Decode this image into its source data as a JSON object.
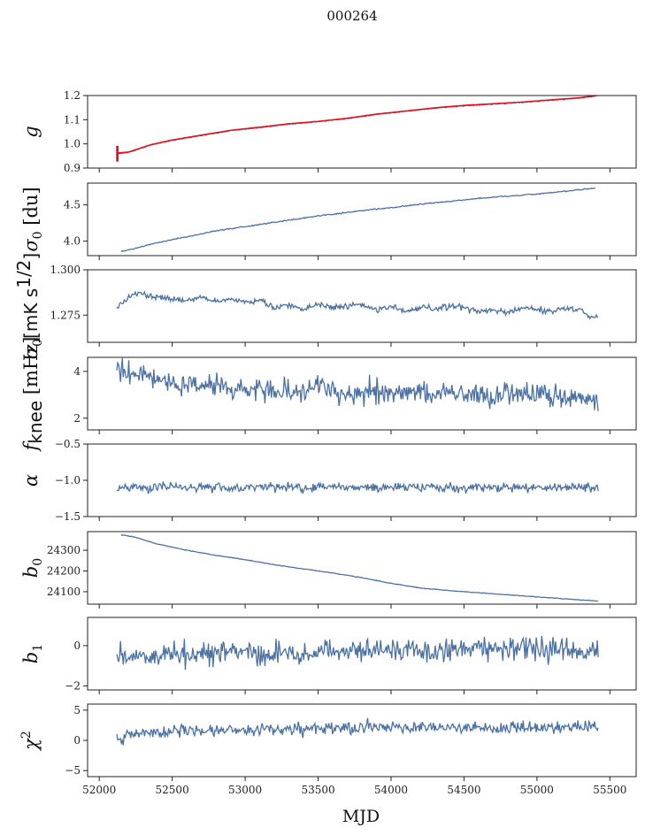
{
  "title": "000264",
  "colors": {
    "series": "#4c72a4",
    "overlay": "#e8101a",
    "axis": "#222222"
  },
  "x_axis": {
    "label": "MJD",
    "range": [
      51920,
      55680
    ],
    "ticks": [
      52000,
      52500,
      53000,
      53500,
      54000,
      54500,
      55000,
      55500
    ],
    "tick_labels": [
      "52000",
      "52500",
      "53000",
      "53500",
      "54000",
      "54500",
      "55000",
      "55500"
    ]
  },
  "chart_data": [
    {
      "type": "line",
      "key": "g",
      "ylabel": "g",
      "ylim": [
        0.9,
        1.2
      ],
      "yticks": [
        0.9,
        1.0,
        1.1,
        1.2
      ],
      "ytick_labels": [
        "0.9",
        "1.0",
        "1.1",
        "1.2"
      ],
      "series": [
        {
          "name": "g",
          "role": "main",
          "x": [
            52120,
            52200,
            52350,
            52500,
            52700,
            52900,
            53100,
            53300,
            53500,
            53700,
            53900,
            54100,
            54300,
            54500,
            54700,
            54900,
            55100,
            55300,
            55420
          ],
          "values": [
            0.96,
            0.965,
            0.995,
            1.015,
            1.035,
            1.055,
            1.068,
            1.082,
            1.092,
            1.105,
            1.122,
            1.135,
            1.148,
            1.158,
            1.165,
            1.172,
            1.181,
            1.19,
            1.2
          ]
        },
        {
          "name": "g fit",
          "role": "overlay",
          "x": [
            52120,
            52200,
            52350,
            52500,
            52700,
            52900,
            53100,
            53300,
            53500,
            53700,
            53900,
            54100,
            54300,
            54500,
            54700,
            54900,
            55100,
            55300,
            55420,
            55500
          ],
          "values": [
            0.962,
            0.966,
            0.996,
            1.016,
            1.036,
            1.056,
            1.069,
            1.083,
            1.093,
            1.106,
            1.123,
            1.136,
            1.149,
            1.159,
            1.166,
            1.173,
            1.182,
            1.191,
            1.201,
            1.205
          ]
        }
      ]
    },
    {
      "type": "line",
      "key": "sigma0_du",
      "ylabel": "σ0 [du]",
      "ylim": [
        3.8,
        4.8
      ],
      "yticks": [
        4.0,
        4.5
      ],
      "ytick_labels": [
        "4.0",
        "4.5"
      ],
      "series": [
        {
          "name": "sigma0",
          "role": "main",
          "x": [
            52150,
            52250,
            52400,
            52600,
            52800,
            53000,
            53200,
            53400,
            53600,
            53800,
            54000,
            54200,
            54400,
            54600,
            54800,
            55000,
            55200,
            55400
          ],
          "values": [
            3.86,
            3.9,
            3.98,
            4.06,
            4.14,
            4.2,
            4.26,
            4.32,
            4.37,
            4.42,
            4.46,
            4.51,
            4.55,
            4.59,
            4.62,
            4.65,
            4.69,
            4.73
          ]
        }
      ]
    },
    {
      "type": "line",
      "key": "sigma0_mK",
      "ylabel": "σ0[mK s^1/2]",
      "ylim": [
        1.26,
        1.3
      ],
      "yticks": [
        1.275,
        1.3
      ],
      "ytick_labels": [
        "1.275",
        "1.300"
      ],
      "series": [
        {
          "name": "sigma0 mK",
          "role": "main",
          "x": [
            52120,
            52160,
            52200,
            52260,
            52320,
            52400,
            52500,
            52600,
            52700,
            52800,
            52900,
            53000,
            53100,
            53200,
            53300,
            53400,
            53500,
            53600,
            53700,
            53800,
            53900,
            54000,
            54100,
            54200,
            54300,
            54400,
            54500,
            54600,
            54700,
            54800,
            54900,
            55000,
            55100,
            55200,
            55300,
            55360,
            55420
          ],
          "values": [
            1.279,
            1.281,
            1.285,
            1.287,
            1.286,
            1.285,
            1.284,
            1.283,
            1.285,
            1.283,
            1.284,
            1.282,
            1.283,
            1.279,
            1.281,
            1.278,
            1.281,
            1.279,
            1.28,
            1.281,
            1.278,
            1.28,
            1.277,
            1.279,
            1.278,
            1.28,
            1.279,
            1.277,
            1.278,
            1.276,
            1.279,
            1.278,
            1.277,
            1.279,
            1.278,
            1.274,
            1.274
          ]
        }
      ]
    },
    {
      "type": "line",
      "key": "fknee",
      "ylabel": "f_knee [mHz]",
      "ylim": [
        1.5,
        4.6
      ],
      "yticks": [
        2,
        4
      ],
      "ytick_labels": [
        "2",
        "4"
      ],
      "series": [
        {
          "name": "fknee",
          "role": "main",
          "x": [
            52120,
            52200,
            52300,
            52400,
            52500,
            52600,
            52700,
            52800,
            52900,
            53000,
            53100,
            53200,
            53300,
            53400,
            53500,
            53600,
            53700,
            53800,
            53900,
            54000,
            54100,
            54200,
            54300,
            54400,
            54500,
            54600,
            54700,
            54800,
            54900,
            55000,
            55100,
            55200,
            55300,
            55420
          ],
          "values": [
            4.2,
            3.9,
            3.8,
            3.7,
            3.5,
            3.4,
            3.4,
            3.5,
            3.3,
            3.2,
            3.3,
            3.1,
            3.2,
            3.1,
            3.3,
            3.2,
            3.0,
            3.1,
            3.2,
            3.0,
            3.1,
            3.1,
            3.0,
            3.2,
            3.0,
            3.1,
            2.9,
            3.1,
            3.0,
            3.2,
            2.9,
            3.0,
            3.0,
            2.7
          ]
        }
      ]
    },
    {
      "type": "line",
      "key": "alpha",
      "ylabel": "α",
      "ylim": [
        -1.5,
        -0.5
      ],
      "yticks": [
        -1.5,
        -1.0,
        -0.5
      ],
      "ytick_labels": [
        "−1.5",
        "−1.0",
        "−0.5"
      ],
      "series": [
        {
          "name": "alpha",
          "role": "main",
          "x": [
            52120,
            52300,
            52500,
            52700,
            52900,
            53100,
            53300,
            53500,
            53700,
            53900,
            54100,
            54300,
            54500,
            54700,
            54900,
            55100,
            55300,
            55420
          ],
          "values": [
            -1.12,
            -1.1,
            -1.09,
            -1.1,
            -1.11,
            -1.09,
            -1.1,
            -1.1,
            -1.09,
            -1.1,
            -1.1,
            -1.09,
            -1.11,
            -1.1,
            -1.1,
            -1.1,
            -1.09,
            -1.12
          ]
        }
      ]
    },
    {
      "type": "line",
      "key": "b0",
      "ylabel": "b0",
      "ylim": [
        24040,
        24390
      ],
      "yticks": [
        24100,
        24200,
        24300
      ],
      "ytick_labels": [
        "24100",
        "24200",
        "24300"
      ],
      "series": [
        {
          "name": "b0",
          "role": "main",
          "x": [
            52150,
            52250,
            52400,
            52600,
            52800,
            53000,
            53200,
            53400,
            53600,
            53800,
            54000,
            54200,
            54400,
            54600,
            54800,
            55000,
            55200,
            55420
          ],
          "values": [
            24375,
            24362,
            24330,
            24300,
            24275,
            24255,
            24230,
            24210,
            24190,
            24168,
            24140,
            24118,
            24105,
            24095,
            24085,
            24075,
            24065,
            24055
          ]
        }
      ]
    },
    {
      "type": "line",
      "key": "b1",
      "ylabel": "b1",
      "ylim": [
        -2.2,
        1.4
      ],
      "yticks": [
        -2,
        0
      ],
      "ytick_labels": [
        "−2",
        "0"
      ],
      "series": [
        {
          "name": "b1",
          "role": "main",
          "x": [
            52120,
            52300,
            52500,
            52700,
            52900,
            53100,
            53300,
            53500,
            53700,
            53900,
            54100,
            54300,
            54500,
            54700,
            54900,
            55100,
            55300,
            55420
          ],
          "values": [
            -0.5,
            -0.6,
            -0.4,
            -0.5,
            -0.3,
            -0.4,
            -0.3,
            -0.3,
            -0.2,
            -0.3,
            -0.2,
            -0.2,
            -0.1,
            -0.2,
            -0.1,
            -0.2,
            -0.2,
            -0.4
          ]
        }
      ]
    },
    {
      "type": "line",
      "key": "chi2",
      "ylabel": "χ²",
      "ylim": [
        -6,
        6
      ],
      "yticks": [
        -5,
        0,
        5
      ],
      "ytick_labels": [
        "−5",
        "0",
        "5"
      ],
      "series": [
        {
          "name": "chi2",
          "role": "main",
          "x": [
            52120,
            52300,
            52500,
            52700,
            52900,
            53100,
            53300,
            53500,
            53700,
            53900,
            54100,
            54300,
            54500,
            54700,
            54900,
            55100,
            55300,
            55420
          ],
          "values": [
            0.5,
            1.2,
            1.5,
            1.6,
            1.7,
            1.8,
            1.9,
            2.0,
            2.0,
            2.1,
            2.2,
            2.1,
            2.2,
            2.0,
            2.1,
            2.0,
            2.2,
            2.6
          ]
        }
      ]
    }
  ]
}
